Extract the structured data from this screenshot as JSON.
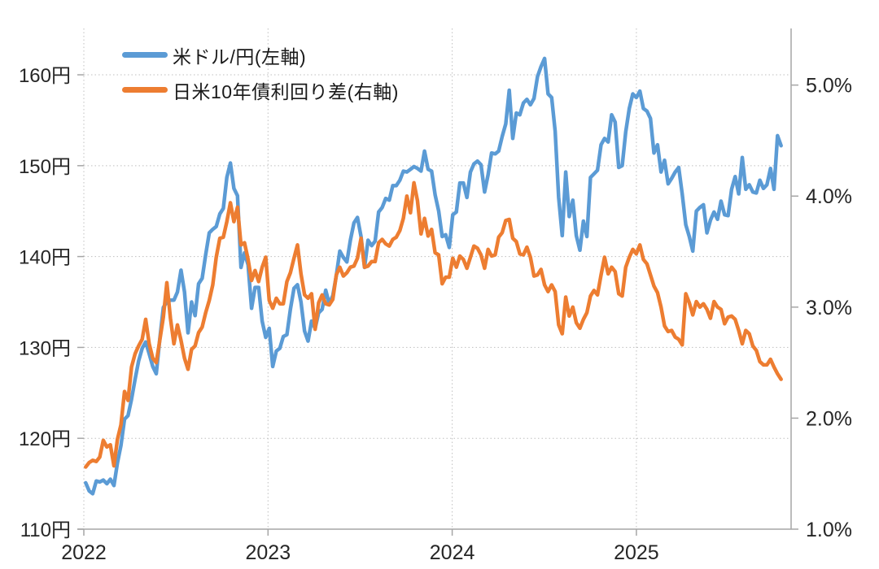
{
  "chart_data": {
    "type": "line",
    "title": "",
    "grid": {
      "color": "#bfbfbf",
      "style": "dotted",
      "horizontal": true,
      "vertical": true
    },
    "axis_line_color": "#a6a6a6",
    "label_color": "#262626",
    "x_axis": {
      "tick_values": [
        2022,
        2023,
        2024,
        2025
      ],
      "tick_labels": [
        "2022",
        "2023",
        "2024",
        "2025"
      ],
      "min": 2022.0,
      "max": 2025.84
    },
    "left_axis": {
      "tick_values": [
        110,
        120,
        130,
        140,
        150,
        160
      ],
      "tick_labels": [
        "110円",
        "120円",
        "130円",
        "140円",
        "150円",
        "160円"
      ],
      "min": 110,
      "max": 165.1
    },
    "right_axis": {
      "tick_values": [
        1.0,
        2.0,
        3.0,
        4.0,
        5.0
      ],
      "tick_labels": [
        "1.0%",
        "2.0%",
        "3.0%",
        "4.0%",
        "5.0%"
      ],
      "min": 1.0,
      "max": 5.51
    },
    "x_start": 2022.01,
    "x_step": 0.019165,
    "series": [
      {
        "name": "米ドル/円(左軸)",
        "axis": "left",
        "color": "#5b9bd5",
        "values": [
          115.1,
          114.2,
          113.9,
          115.3,
          115.2,
          115.4,
          115.0,
          115.5,
          114.8,
          117.3,
          119.2,
          122.1,
          122.5,
          124.3,
          126.5,
          128.5,
          129.9,
          130.6,
          129.3,
          127.9,
          127.1,
          130.9,
          134.4,
          135.0,
          135.2,
          135.2,
          136.1,
          138.5,
          136.1,
          131.6,
          135.0,
          133.5,
          137.0,
          137.6,
          140.2,
          142.6,
          143.0,
          143.3,
          144.7,
          145.3,
          148.7,
          150.3,
          147.5,
          146.7,
          138.8,
          140.4,
          139.1,
          134.3,
          136.6,
          136.6,
          132.9,
          131.1,
          132.1,
          127.9,
          129.6,
          129.9,
          131.2,
          131.4,
          134.2,
          136.5,
          136.9,
          135.0,
          131.8,
          130.7,
          132.9,
          132.1,
          133.8,
          134.2,
          136.3,
          134.8,
          135.7,
          137.9,
          140.6,
          139.9,
          139.4,
          141.8,
          143.7,
          144.3,
          142.2,
          138.8,
          141.8,
          141.2,
          141.7,
          144.9,
          145.4,
          146.4,
          146.2,
          147.8,
          147.8,
          148.4,
          149.4,
          149.3,
          149.6,
          149.9,
          149.7,
          149.4,
          151.6,
          149.6,
          149.4,
          146.8,
          145.0,
          142.2,
          142.4,
          141.0,
          144.6,
          144.9,
          148.1,
          148.1,
          146.5,
          149.3,
          150.2,
          150.5,
          150.1,
          147.1,
          149.0,
          151.4,
          151.3,
          151.6,
          153.2,
          154.6,
          158.3,
          153.0,
          155.8,
          155.6,
          156.9,
          157.3,
          156.7,
          157.4,
          159.8,
          160.9,
          161.8,
          157.9,
          157.5,
          153.8,
          146.5,
          142.3,
          149.3,
          144.4,
          146.2,
          142.3,
          140.7,
          143.9,
          142.2,
          148.7,
          149.1,
          149.5,
          152.3,
          153.0,
          152.6,
          155.6,
          154.8,
          149.8,
          150.0,
          153.7,
          156.3,
          157.9,
          157.5,
          158.2,
          156.3,
          156.0,
          155.2,
          151.4,
          152.3,
          149.3,
          150.6,
          148.0,
          148.6,
          149.3,
          149.8,
          146.9,
          143.5,
          142.2,
          140.6,
          145.0,
          145.4,
          145.7,
          142.6,
          144.0,
          144.9,
          144.1,
          146.1,
          144.6,
          144.5,
          147.4,
          148.8,
          146.9,
          150.9,
          147.4,
          147.9,
          147.1,
          147.0,
          148.4,
          147.5,
          147.9,
          149.7,
          147.4,
          153.3,
          152.2
        ]
      },
      {
        "name": "日米10年債利回り差(右軸)",
        "axis": "right",
        "color": "#ed7d31",
        "values": [
          1.56,
          1.6,
          1.62,
          1.61,
          1.65,
          1.8,
          1.74,
          1.76,
          1.57,
          1.81,
          1.94,
          2.24,
          2.16,
          2.46,
          2.58,
          2.65,
          2.71,
          2.89,
          2.67,
          2.54,
          2.5,
          2.7,
          2.91,
          3.22,
          2.9,
          2.67,
          2.84,
          2.7,
          2.54,
          2.44,
          2.62,
          2.65,
          2.77,
          2.82,
          2.95,
          3.06,
          3.2,
          3.45,
          3.62,
          3.63,
          3.77,
          3.94,
          3.77,
          3.9,
          3.56,
          3.58,
          3.43,
          3.24,
          3.33,
          3.23,
          3.36,
          3.45,
          3.06,
          2.99,
          3.08,
          3.03,
          3.03,
          3.23,
          3.31,
          3.44,
          3.56,
          3.3,
          3.11,
          3.08,
          3.12,
          2.8,
          3.04,
          3.11,
          3.03,
          3.02,
          3.07,
          3.29,
          3.36,
          3.28,
          3.31,
          3.36,
          3.37,
          3.44,
          3.62,
          3.36,
          3.37,
          3.41,
          3.41,
          3.58,
          3.61,
          3.57,
          3.55,
          3.61,
          3.63,
          3.69,
          3.8,
          4.0,
          3.85,
          4.12,
          3.96,
          3.66,
          3.8,
          3.64,
          3.7,
          3.49,
          3.47,
          3.21,
          3.27,
          3.27,
          3.44,
          3.36,
          3.46,
          3.43,
          3.35,
          3.45,
          3.55,
          3.53,
          3.47,
          3.35,
          3.52,
          3.46,
          3.47,
          3.63,
          3.67,
          3.78,
          3.79,
          3.62,
          3.59,
          3.48,
          3.47,
          3.54,
          3.45,
          3.28,
          3.29,
          3.34,
          3.2,
          3.14,
          3.2,
          3.14,
          2.84,
          2.76,
          3.09,
          2.92,
          3.0,
          2.86,
          2.81,
          2.89,
          2.95,
          3.1,
          3.15,
          3.11,
          3.29,
          3.45,
          3.3,
          3.36,
          3.32,
          3.12,
          3.1,
          3.36,
          3.45,
          3.52,
          3.48,
          3.56,
          3.43,
          3.39,
          3.29,
          3.19,
          3.13,
          3.0,
          2.83,
          2.78,
          2.79,
          2.73,
          2.71,
          2.66,
          3.12,
          3.04,
          2.93,
          3.05,
          3.0,
          3.03,
          2.98,
          2.9,
          3.05,
          3.0,
          2.98,
          2.85,
          2.91,
          2.92,
          2.89,
          2.79,
          2.67,
          2.79,
          2.76,
          2.65,
          2.61,
          2.51,
          2.48,
          2.48,
          2.53,
          2.46,
          2.4,
          2.35
        ]
      }
    ]
  },
  "legend": {
    "items": [
      {
        "label": "米ドル/円(左軸)",
        "color": "#5b9bd5"
      },
      {
        "label": "日米10年債利回り差(右軸)",
        "color": "#ed7d31"
      }
    ]
  }
}
